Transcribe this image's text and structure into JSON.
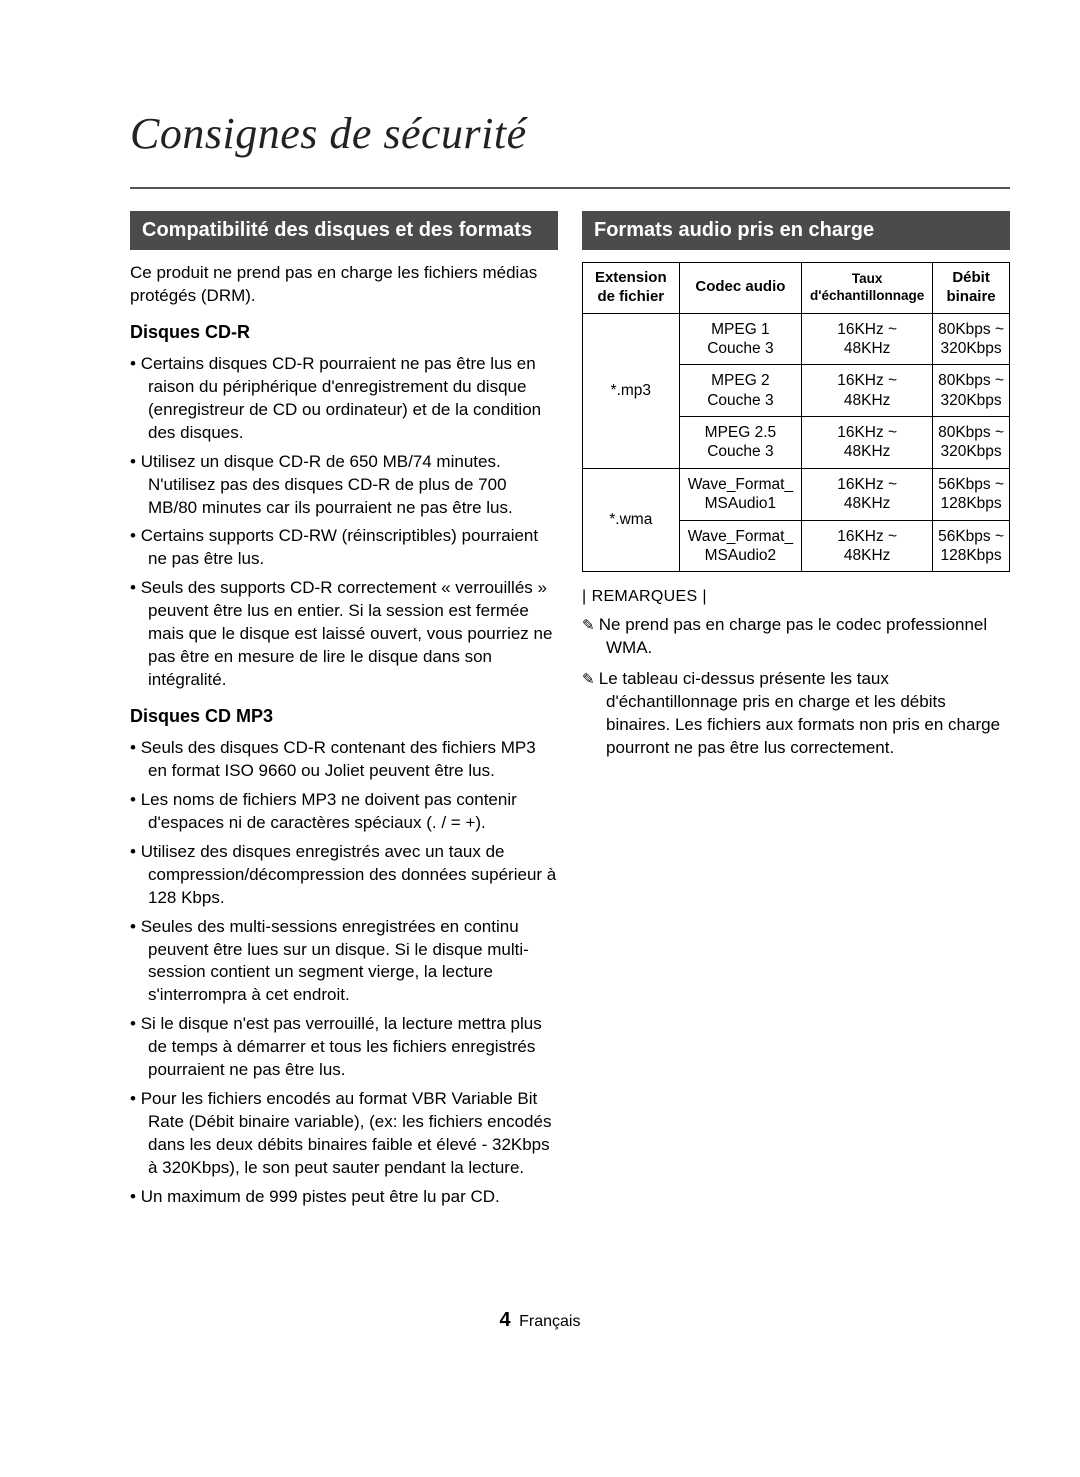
{
  "page": {
    "title": "Consignes de sécurité",
    "page_number": "4",
    "language_label": "Français"
  },
  "colors": {
    "header_bg": "#4b4b4b",
    "header_text": "#ffffff",
    "rule": "#555555",
    "gradient_top": "#d9d9d9",
    "gradient_bottom": "#ffffff",
    "body_text": "#000000"
  },
  "typography": {
    "title_font": "Georgia, serif",
    "title_style": "italic",
    "title_size_pt": 33,
    "body_font": "Arial, sans-serif",
    "body_size_pt": 12.5,
    "subhead_size_pt": 13.5,
    "section_header_size_pt": 15
  },
  "left": {
    "section_header": "Compatibilité des disques et des formats",
    "intro": "Ce produit ne prend pas en charge les fichiers médias protégés (DRM).",
    "sub1": {
      "title": "Disques CD-R",
      "items": [
        "Certains disques CD-R pourraient ne pas être lus en raison du périphérique d'enregistrement du disque (enregistreur de CD ou ordinateur) et de la condition des disques.",
        "Utilisez un disque CD-R de 650 MB/74 minutes. N'utilisez pas des disques CD-R de plus de 700 MB/80 minutes car ils pourraient ne pas être lus.",
        "Certains supports CD-RW (réinscriptibles) pourraient ne pas être lus.",
        "Seuls des supports CD-R correctement « verrouillés » peuvent être lus en entier. Si la session est fermée mais que le disque est laissé ouvert, vous pourriez ne pas être en mesure de lire le disque dans son intégralité."
      ]
    },
    "sub2": {
      "title": "Disques CD MP3",
      "items": [
        "Seuls des disques CD-R contenant des fichiers MP3 en format ISO 9660 ou Joliet peuvent être lus.",
        "Les noms de fichiers MP3 ne doivent pas contenir d'espaces ni de caractères spéciaux (. / = +).",
        "Utilisez des disques enregistrés avec un taux de compression/décompression des données supérieur à 128 Kbps.",
        "Seules des multi-sessions enregistrées en continu peuvent être lues sur un disque. Si le disque multi-session contient un segment vierge, la lecture s'interrompra à cet endroit.",
        "Si le disque n'est pas verrouillé, la lecture mettra plus de temps à démarrer et tous les fichiers enregistrés pourraient ne pas être lus.",
        "Pour les fichiers encodés au format VBR Variable Bit Rate (Débit binaire variable), (ex: les fichiers encodés dans les deux débits binaires faible et élevé - 32Kbps à 320Kbps), le son peut sauter pendant la lecture.",
        "Un maximum de 999 pistes peut être lu par CD."
      ]
    }
  },
  "right": {
    "section_header": "Formats audio pris en charge",
    "table": {
      "type": "table",
      "columns": [
        "Extension de fichier",
        "Codec audio",
        "Taux d'échantillonnage",
        "Débit binaire"
      ],
      "col_widths_pct": [
        22,
        30,
        24,
        24
      ],
      "border_color": "#000000",
      "header_fontweight": "700",
      "groups": [
        {
          "ext": "*.mp3",
          "rows": [
            {
              "codec": "MPEG 1 Couche 3",
              "rate": "16KHz ~ 48KHz",
              "bitrate": "80Kbps ~ 320Kbps"
            },
            {
              "codec": "MPEG 2 Couche 3",
              "rate": "16KHz ~ 48KHz",
              "bitrate": "80Kbps ~ 320Kbps"
            },
            {
              "codec": "MPEG 2.5 Couche 3",
              "rate": "16KHz ~ 48KHz",
              "bitrate": "80Kbps ~ 320Kbps"
            }
          ]
        },
        {
          "ext": "*.wma",
          "rows": [
            {
              "codec": "Wave_Format_\nMSAudio1",
              "rate": "16KHz ~ 48KHz",
              "bitrate": "56Kbps ~ 128Kbps"
            },
            {
              "codec": "Wave_Format_\nMSAudio2",
              "rate": "16KHz ~ 48KHz",
              "bitrate": "56Kbps ~ 128Kbps"
            }
          ]
        }
      ]
    },
    "remarks_label": "REMARQUES",
    "remarks": [
      "Ne prend pas en charge pas le codec professionnel WMA.",
      "Le tableau ci-dessus présente les taux d'échantillonnage pris en charge et les débits binaires. Les fichiers aux formats non pris en charge pourront ne pas être lus correctement."
    ]
  }
}
